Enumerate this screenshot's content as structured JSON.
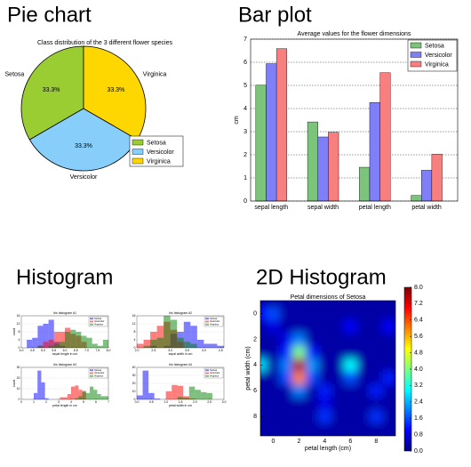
{
  "chart_data": [
    {
      "type": "pie",
      "heading": "Pie chart",
      "title": "Class distribution of the 3 different flower species",
      "categories": [
        "Setosa",
        "Versicolor",
        "Virginica"
      ],
      "values": [
        33.3,
        33.3,
        33.3
      ],
      "value_labels": [
        "33.3%",
        "33.3%",
        "33.3%"
      ],
      "colors": [
        "#9acd32",
        "#87cefa",
        "#ffd700"
      ],
      "legend": "lower right"
    },
    {
      "type": "bar",
      "heading": "Bar plot",
      "title": "Average values for the flower dimensions",
      "ylabel": "cm",
      "categories": [
        "sepal length",
        "sepal width",
        "petal length",
        "petal width"
      ],
      "series": [
        {
          "name": "Setosa",
          "color": "#7cc47c",
          "values": [
            5.01,
            3.42,
            1.46,
            0.24
          ]
        },
        {
          "name": "Versicolor",
          "color": "#7f7ff7",
          "values": [
            5.94,
            2.77,
            4.26,
            1.33
          ]
        },
        {
          "name": "Virginica",
          "color": "#f77f7f",
          "values": [
            6.59,
            2.97,
            5.55,
            2.03
          ]
        }
      ],
      "ylim": [
        0,
        7
      ],
      "yticks": [
        0,
        1,
        2,
        3,
        4,
        5,
        6,
        7
      ],
      "grid": true,
      "legend": "upper right"
    },
    {
      "type": "histogram",
      "heading": "Histogram",
      "subplots": [
        {
          "title": "Iris histogram #1",
          "xlabel": "sepal length in cm",
          "ylabel": "count",
          "bins": [
            4.0,
            4.25,
            4.5,
            4.75,
            5.0,
            5.25,
            5.5,
            5.75,
            6.0,
            6.25,
            6.5,
            6.75,
            7.0,
            7.25,
            7.5,
            7.75,
            8.0
          ],
          "xlim": [
            4,
            8
          ],
          "xticks": [
            {
              "value": 4,
              "label": "4.0"
            },
            4.5,
            {
              "value": 5,
              "label": "5.0"
            },
            5.5,
            {
              "value": 6,
              "label": "6.0"
            },
            6.5,
            {
              "value": 7,
              "label": "7.0"
            },
            7.5,
            {
              "value": 8,
              "label": "8.0"
            }
          ],
          "ylim": [
            0,
            16
          ],
          "yticks": [
            0,
            4,
            8,
            12,
            16
          ],
          "series": [
            {
              "name": "Setosa",
              "color": "#0000ff",
              "values": [
                0,
                4,
                5,
                11,
                12,
                14,
                3,
                1,
                0,
                0,
                0,
                0,
                0,
                0,
                0,
                0
              ]
            },
            {
              "name": "Versicolor",
              "color": "#ff0000",
              "values": [
                0,
                0,
                0,
                1,
                3,
                4,
                8,
                8,
                10,
                7,
                6,
                3,
                0,
                0,
                0,
                0
              ]
            },
            {
              "name": "Virginica",
              "color": "#008000",
              "values": [
                0,
                0,
                0,
                1,
                0,
                1,
                2,
                3,
                8,
                9,
                8,
                6,
                5,
                2,
                1,
                4
              ]
            }
          ]
        },
        {
          "title": "Iris histogram #2",
          "xlabel": "sepal width in cm",
          "bins": [
            2.0,
            2.2,
            2.4,
            2.6,
            2.8,
            3.0,
            3.2,
            3.4,
            3.6,
            3.8,
            4.0,
            4.2,
            4.4,
            4.6
          ],
          "xlim": [
            2,
            4.6
          ],
          "xticks": [
            {
              "value": 2,
              "label": "2.0"
            },
            2.5,
            {
              "value": 3,
              "label": "3.0"
            },
            3.5,
            {
              "value": 4,
              "label": "4.0"
            },
            4.5
          ],
          "ylim": [
            0,
            16
          ],
          "yticks": [
            0,
            4,
            8,
            12,
            16
          ],
          "series": [
            {
              "name": "Setosa",
              "color": "#0000ff",
              "values": [
                0,
                0,
                1,
                0,
                1,
                7,
                8,
                13,
                11,
                4,
                2,
                2,
                1
              ]
            },
            {
              "name": "Versicolor",
              "color": "#ff0000",
              "values": [
                2,
                4,
                8,
                11,
                13,
                9,
                3,
                0,
                0,
                0,
                0,
                0,
                0
              ]
            },
            {
              "name": "Virginica",
              "color": "#008000",
              "values": [
                0,
                1,
                4,
                5,
                16,
                14,
                5,
                3,
                2,
                0,
                0,
                0,
                0
              ]
            }
          ]
        },
        {
          "title": "Iris histogram #3",
          "xlabel": "petal length in cm",
          "ylabel": "count",
          "bins": [
            1.0,
            1.3,
            1.6,
            1.9,
            2.2,
            2.5,
            2.8,
            3.1,
            3.4,
            3.7,
            4.0,
            4.3,
            4.6,
            4.9,
            5.2,
            5.5,
            5.8,
            6.1,
            6.4,
            6.7,
            7.0
          ],
          "xlim": [
            0,
            7
          ],
          "xticks": [
            0,
            1,
            2,
            3,
            4,
            5,
            6,
            7
          ],
          "ylim": [
            0,
            30
          ],
          "yticks": [
            0,
            10,
            20,
            30
          ],
          "series": [
            {
              "name": "Setosa",
              "color": "#0000ff",
              "values": [
                6,
                27,
                16,
                1,
                0,
                0,
                0,
                0,
                0,
                0,
                0,
                0,
                0,
                0,
                0,
                0,
                0,
                0,
                0,
                0
              ]
            },
            {
              "name": "Versicolor",
              "color": "#ff0000",
              "values": [
                0,
                0,
                0,
                0,
                0,
                0,
                0,
                2,
                2,
                5,
                12,
                13,
                9,
                7,
                0,
                0,
                0,
                0,
                0,
                0
              ]
            },
            {
              "name": "Virginica",
              "color": "#008000",
              "values": [
                0,
                0,
                0,
                0,
                0,
                0,
                0,
                0,
                0,
                0,
                0,
                1,
                3,
                8,
                6,
                12,
                9,
                5,
                3,
                3
              ]
            }
          ]
        },
        {
          "title": "Iris histogram #4",
          "xlabel": "petal width in cm",
          "bins": [
            0.0,
            0.2,
            0.4,
            0.6,
            0.8,
            1.0,
            1.2,
            1.4,
            1.6,
            1.8,
            2.0,
            2.2,
            2.4,
            2.6
          ],
          "xlim": [
            0,
            3
          ],
          "xticks": [
            {
              "value": 0,
              "label": "0.0"
            },
            0.5,
            {
              "value": 1,
              "label": "1.0"
            },
            1.5,
            {
              "value": 2,
              "label": "2.0"
            },
            2.5,
            {
              "value": 3,
              "label": "3.0"
            }
          ],
          "ylim": [
            0,
            40
          ],
          "yticks": [
            0,
            10,
            20,
            30,
            40
          ],
          "series": [
            {
              "name": "Setosa",
              "color": "#0000ff",
              "values": [
                5,
                36,
                8,
                1,
                0,
                0,
                0,
                0,
                0,
                0,
                0,
                0,
                0
              ]
            },
            {
              "name": "Versicolor",
              "color": "#ff0000",
              "values": [
                0,
                0,
                0,
                0,
                0,
                10,
                18,
                17,
                4,
                1,
                0,
                0,
                0
              ]
            },
            {
              "name": "Virginica",
              "color": "#008000",
              "values": [
                0,
                0,
                0,
                0,
                0,
                0,
                0,
                3,
                2,
                16,
                12,
                9,
                8
              ]
            }
          ]
        }
      ]
    },
    {
      "type": "heatmap",
      "heading": "2D Histogram",
      "title": "Petal dimensions of Setosa",
      "xlabel": "petal length (cm)",
      "ylabel": "petal width (cm)",
      "xbins": [
        -1.5,
        -0.5,
        0.5,
        1.5,
        2.5,
        3.5,
        4.5,
        5.5,
        6.5,
        7.5,
        8.5,
        9.5
      ],
      "ybins": [
        -1.5,
        -0.5,
        0.5,
        1.5,
        2.5,
        3.5,
        4.5,
        5.5,
        6.5,
        7.5,
        8.5,
        9.5
      ],
      "xlim": [
        -1,
        9.5
      ],
      "ylim": [
        9.5,
        -1
      ],
      "xticks": [
        0,
        2,
        4,
        6,
        8
      ],
      "yticks": [
        0,
        2,
        4,
        6,
        8
      ],
      "values": [
        [
          0.3,
          0.3,
          0.3,
          0.3,
          0.3,
          0.3,
          0.3,
          0.3,
          0.3,
          0.3,
          0.3
        ],
        [
          1.0,
          1.6,
          0.3,
          0.3,
          0.3,
          0.3,
          0.3,
          0.3,
          0.3,
          0.3,
          0.3
        ],
        [
          0.3,
          0.8,
          0.3,
          0.3,
          0.3,
          0.3,
          0.3,
          1.0,
          0.3,
          0.3,
          1.0
        ],
        [
          0.3,
          0.3,
          0.8,
          2.0,
          0.3,
          0.3,
          0.3,
          0.3,
          0.3,
          0.3,
          0.3
        ],
        [
          0.3,
          0.3,
          1.2,
          4.0,
          1.2,
          0.3,
          0.3,
          0.3,
          0.3,
          0.3,
          0.3
        ],
        [
          2.8,
          0.3,
          2.0,
          7.6,
          2.2,
          0.3,
          0.3,
          3.0,
          0.3,
          0.3,
          0.3
        ],
        [
          0.3,
          0.3,
          1.6,
          6.0,
          1.6,
          0.3,
          0.3,
          1.6,
          0.3,
          0.3,
          1.2
        ],
        [
          0.3,
          0.3,
          0.3,
          2.0,
          0.3,
          1.2,
          0.3,
          0.3,
          0.3,
          1.2,
          0.3
        ],
        [
          0.3,
          0.3,
          0.3,
          0.3,
          0.3,
          0.8,
          0.3,
          0.3,
          0.3,
          0.3,
          0.3
        ],
        [
          0.3,
          0.3,
          0.3,
          0.3,
          0.3,
          1.4,
          0.3,
          0.3,
          0.3,
          1.4,
          0.3
        ],
        [
          0.3,
          0.3,
          0.3,
          0.3,
          0.3,
          0.3,
          0.3,
          0.3,
          0.3,
          0.3,
          0.3
        ]
      ],
      "colormap": "jet",
      "clim": [
        0,
        8
      ],
      "cticks": [
        {
          "value": 0,
          "label": "0.0"
        },
        0.8,
        1.6,
        2.4,
        3.2,
        {
          "value": 4,
          "label": "4.0"
        },
        4.8,
        5.6,
        6.4,
        7.2,
        {
          "value": 8,
          "label": "8.0"
        }
      ]
    }
  ]
}
